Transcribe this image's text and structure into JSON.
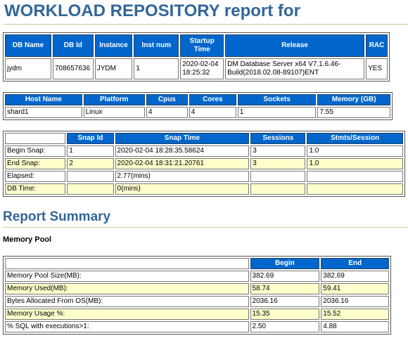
{
  "report_title": "WORKLOAD REPOSITORY report for",
  "db_table": {
    "headers": [
      "DB Name",
      "DB Id",
      "Instance",
      "Inst num",
      "Startup Time",
      "Release",
      "RAC"
    ],
    "row": [
      "jydm",
      "708657636",
      "JYDM",
      "1",
      "2020-02-04 18:25:32",
      "DM Database Server x64 V7.1.6.46-Build(2018.02.08-89107)ENT",
      "YES"
    ]
  },
  "host_table": {
    "headers": [
      "Host Name",
      "Platform",
      "Cpus",
      "Cores",
      "Sockets",
      "Memory (GB)"
    ],
    "row": [
      "shard1",
      "Linux",
      "4",
      "4",
      "1",
      "7.55"
    ]
  },
  "snap_table": {
    "headers": [
      "",
      "Snap Id",
      "Snap Time",
      "Sessions",
      "Stmts/Session"
    ],
    "rows": [
      [
        "Begin Snap:",
        "1",
        "2020-02-04 18:28:35.58624",
        "3",
        "1.0"
      ],
      [
        "End Snap:",
        "2",
        "2020-02-04 18:31:21.20761",
        "3",
        "1.0"
      ],
      [
        "Elapsed:",
        "",
        "2.77(mins)",
        "",
        ""
      ],
      [
        "DB Time:",
        "",
        "0(mins)",
        "",
        ""
      ]
    ]
  },
  "report_summary_title": "Report Summary",
  "memory_pool_title": "Memory Pool",
  "memory_table": {
    "headers": [
      "",
      "Begin",
      "End"
    ],
    "rows": [
      [
        "Memory Pool Size(MB):",
        "382.69",
        "382.69"
      ],
      [
        "Memory Used(MB):",
        "58.74",
        "59.41"
      ],
      [
        "Bytes Allocated From OS(MB):",
        "2036.16",
        "2036.16"
      ],
      [
        "Memory Usage %:",
        "15.35",
        "15.52"
      ],
      [
        "% SQL with executions>1:",
        "2.50",
        "4.88"
      ]
    ]
  },
  "colors": {
    "title": "#336699",
    "header_bg": "#0066cc",
    "alt_row_bg": "#ffffcc"
  }
}
